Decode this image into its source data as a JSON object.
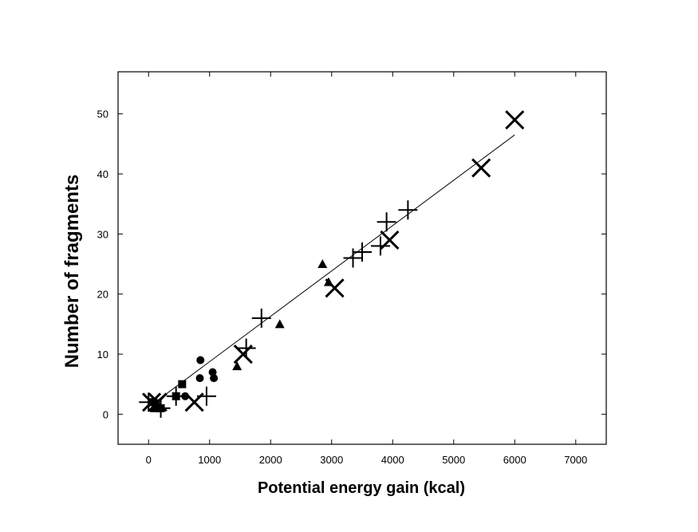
{
  "chart_data": {
    "type": "scatter",
    "title": "",
    "xlabel": "Potential energy gain (kcal)",
    "ylabel": "Number of fragments",
    "xlim": [
      -500,
      7500
    ],
    "ylim": [
      -5,
      57
    ],
    "xticks": [
      0,
      1000,
      2000,
      3000,
      4000,
      5000,
      6000,
      7000
    ],
    "yticks": [
      0,
      10,
      20,
      30,
      40,
      50
    ],
    "grid": false,
    "legend": "none",
    "series": [
      {
        "name": "circles",
        "marker": "circle",
        "points": [
          [
            850,
            9
          ],
          [
            840,
            6
          ],
          [
            1050,
            7
          ],
          [
            1070,
            6
          ],
          [
            600,
            3
          ],
          [
            150,
            1
          ]
        ]
      },
      {
        "name": "squares",
        "marker": "square",
        "points": [
          [
            550,
            5
          ],
          [
            450,
            3
          ],
          [
            80,
            2
          ],
          [
            200,
            1
          ]
        ]
      },
      {
        "name": "triangles",
        "marker": "triangle",
        "points": [
          [
            2850,
            25
          ],
          [
            2150,
            15
          ],
          [
            1450,
            8
          ],
          [
            2950,
            22
          ],
          [
            100,
            1
          ]
        ]
      },
      {
        "name": "plus",
        "marker": "plus",
        "points": [
          [
            4250,
            34
          ],
          [
            3900,
            32
          ],
          [
            3800,
            28
          ],
          [
            3500,
            27
          ],
          [
            3350,
            26
          ],
          [
            1850,
            16
          ],
          [
            1600,
            11
          ],
          [
            950,
            3
          ],
          [
            450,
            3
          ],
          [
            200,
            1
          ],
          [
            0,
            2
          ]
        ]
      },
      {
        "name": "cross",
        "marker": "x",
        "points": [
          [
            6000,
            49
          ],
          [
            5450,
            41
          ],
          [
            3950,
            29
          ],
          [
            3050,
            21
          ],
          [
            1550,
            10
          ],
          [
            750,
            2
          ],
          [
            150,
            2
          ],
          [
            50,
            2
          ]
        ]
      }
    ],
    "fit_line": {
      "x": [
        0,
        6000
      ],
      "y": [
        1.2,
        46.5
      ]
    }
  }
}
